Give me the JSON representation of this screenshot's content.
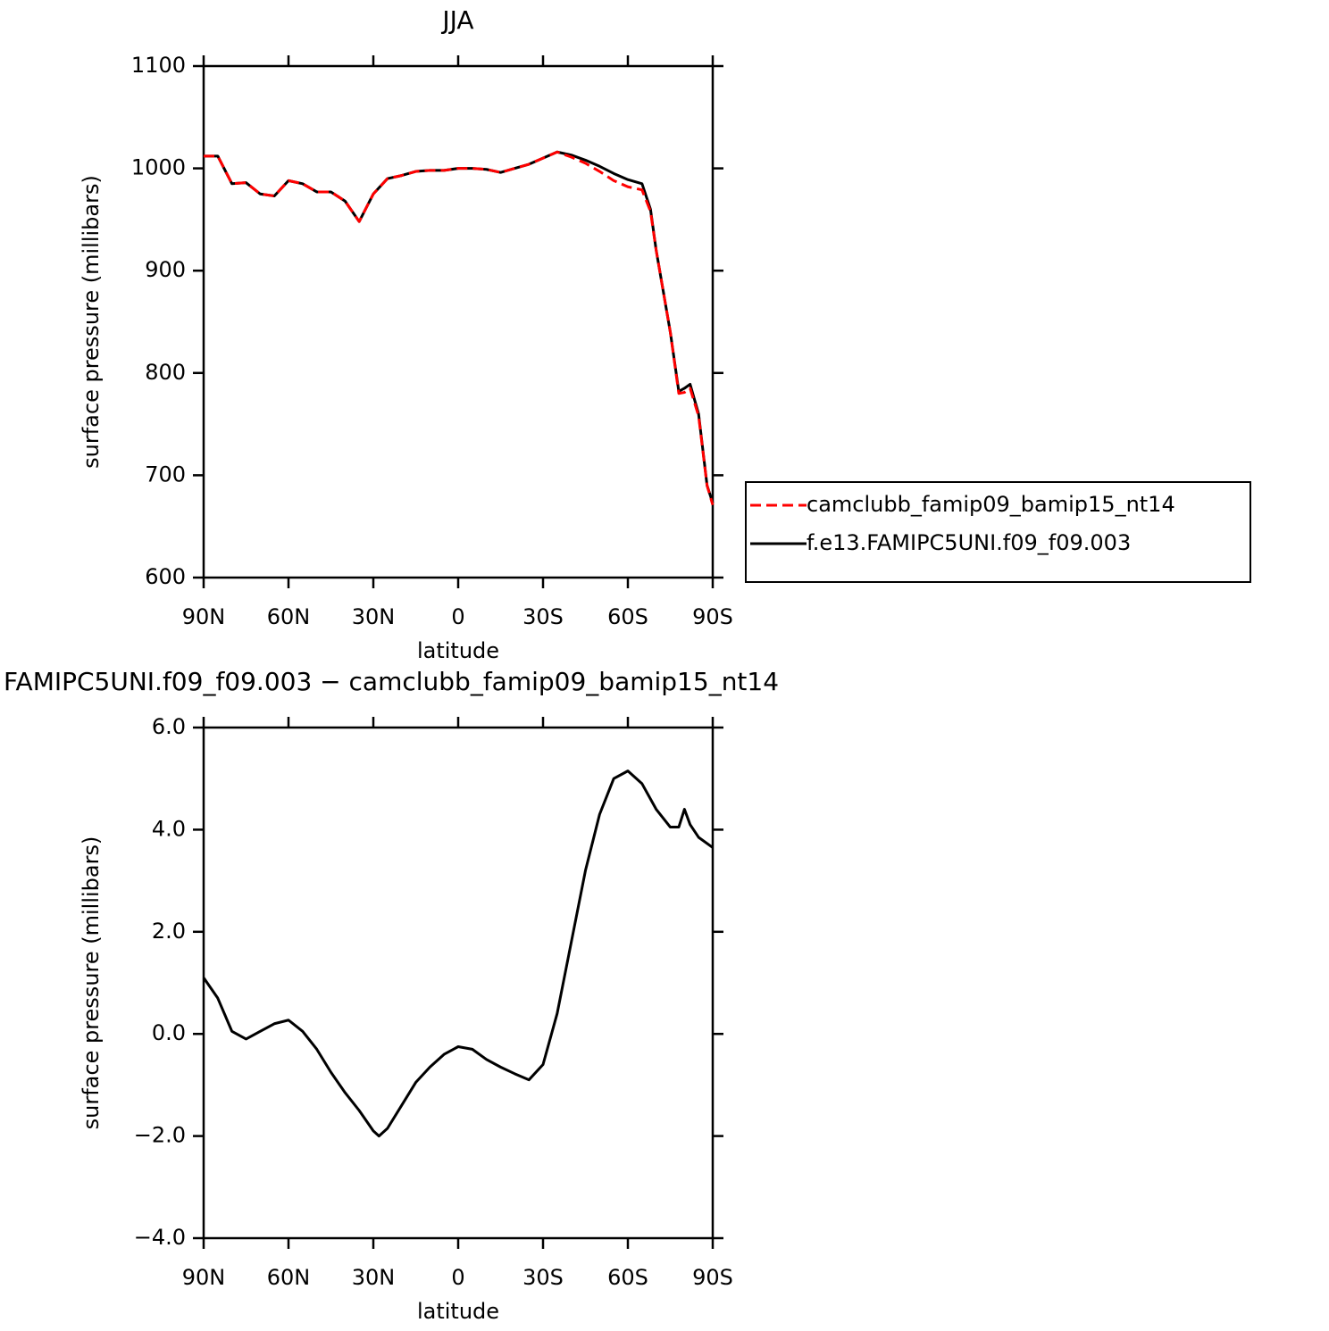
{
  "chart_data": [
    {
      "type": "line",
      "title": "JJA",
      "x_label": "latitude",
      "y_label": "surface pressure (millibars)",
      "x": [
        90,
        85,
        80,
        75,
        70,
        65,
        60,
        55,
        50,
        45,
        40,
        35,
        30,
        25,
        20,
        15,
        10,
        5,
        0,
        -5,
        -10,
        -15,
        -20,
        -25,
        -30,
        -35,
        -40,
        -45,
        -50,
        -55,
        -60,
        -65,
        -68,
        -70,
        -75,
        -78,
        -80,
        -82,
        -85,
        -88,
        -90
      ],
      "xlim": [
        90,
        -90
      ],
      "xticks": [
        {
          "value": 90,
          "label": "90N"
        },
        {
          "value": 60,
          "label": "60N"
        },
        {
          "value": 30,
          "label": "30N"
        },
        0,
        {
          "value": -30,
          "label": "30S"
        },
        {
          "value": -60,
          "label": "60S"
        },
        {
          "value": -90,
          "label": "90S"
        }
      ],
      "ylim": [
        600,
        1100
      ],
      "yticks": [
        600,
        700,
        800,
        900,
        1000,
        1100
      ],
      "legend": "right",
      "series": [
        {
          "name": "camclubb_famip09_bamip15_nt14",
          "color": "#ff0000",
          "dash": "dashed",
          "values": [
            1012,
            1012,
            985,
            986,
            975,
            973,
            988,
            985,
            977,
            977,
            968,
            948,
            975,
            990,
            993,
            997,
            998,
            998,
            1000,
            1000,
            999,
            996,
            1000,
            1004,
            1010,
            1016,
            1011,
            1005,
            997,
            988,
            982,
            979,
            958,
            920,
            840,
            780,
            781,
            785,
            758,
            690,
            671
          ]
        },
        {
          "name": "f.e13.FAMIPC5UNI.f09_f09.003",
          "color": "#000000",
          "dash": "solid",
          "values": [
            1012,
            1012,
            985,
            986,
            975,
            973,
            988,
            985,
            977,
            977,
            968,
            948,
            975,
            990,
            993,
            997,
            998,
            998,
            1000,
            1000,
            999,
            996,
            1000,
            1004,
            1010,
            1016,
            1013,
            1008,
            1002,
            995,
            989,
            985,
            960,
            920,
            840,
            782,
            785,
            789,
            760,
            690,
            673
          ]
        }
      ]
    },
    {
      "type": "line",
      "title": "FAMIPC5UNI.f09_f09.003 − camclubb_famip09_bamip15_nt14",
      "x_label": "latitude",
      "y_label": "surface pressure (millibars)",
      "x": [
        90,
        85,
        80,
        75,
        70,
        65,
        60,
        55,
        50,
        45,
        40,
        35,
        30,
        28,
        25,
        20,
        15,
        10,
        5,
        0,
        -5,
        -10,
        -15,
        -20,
        -25,
        -30,
        -35,
        -40,
        -45,
        -50,
        -55,
        -60,
        -65,
        -70,
        -75,
        -78,
        -80,
        -82,
        -85,
        -90
      ],
      "xlim": [
        90,
        -90
      ],
      "xticks": [
        {
          "value": 90,
          "label": "90N"
        },
        {
          "value": 60,
          "label": "60N"
        },
        {
          "value": 30,
          "label": "30N"
        },
        0,
        {
          "value": -30,
          "label": "30S"
        },
        {
          "value": -60,
          "label": "60S"
        },
        {
          "value": -90,
          "label": "90S"
        }
      ],
      "ylim": [
        -4,
        6
      ],
      "yticks": [
        {
          "value": -4,
          "label": "−4.0"
        },
        {
          "value": -2,
          "label": "−2.0"
        },
        {
          "value": 0,
          "label": "0.0"
        },
        {
          "value": 2,
          "label": "2.0"
        },
        {
          "value": 4,
          "label": "4.0"
        },
        {
          "value": 6,
          "label": "6.0"
        }
      ],
      "series": [
        {
          "color": "#000000",
          "dash": "solid",
          "values": [
            1.1,
            0.7,
            0.05,
            -0.1,
            0.05,
            0.2,
            0.27,
            0.05,
            -0.3,
            -0.75,
            -1.15,
            -1.5,
            -1.9,
            -2.0,
            -1.85,
            -1.4,
            -0.95,
            -0.65,
            -0.4,
            -0.25,
            -0.3,
            -0.5,
            -0.65,
            -0.78,
            -0.9,
            -0.6,
            0.4,
            1.8,
            3.2,
            4.3,
            5.0,
            5.15,
            4.9,
            4.4,
            4.05,
            4.05,
            4.4,
            4.1,
            3.85,
            3.65
          ]
        }
      ]
    }
  ]
}
